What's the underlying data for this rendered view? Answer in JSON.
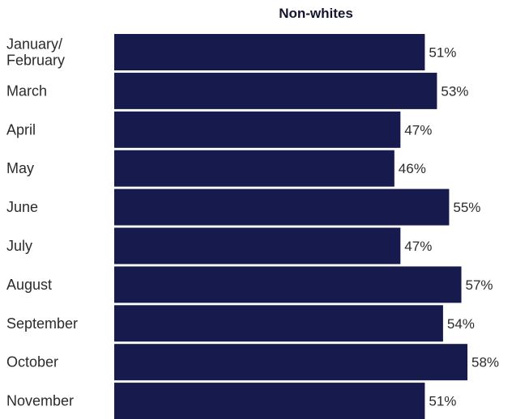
{
  "chart_data": {
    "type": "bar",
    "orientation": "horizontal",
    "title": "Non-whites",
    "categories": [
      [
        "January/",
        "February"
      ],
      [
        "March"
      ],
      [
        "April"
      ],
      [
        "May"
      ],
      [
        "June"
      ],
      [
        "July"
      ],
      [
        "August"
      ],
      [
        "September"
      ],
      [
        "October"
      ],
      [
        "November"
      ]
    ],
    "values": [
      51,
      53,
      47,
      46,
      55,
      47,
      57,
      54,
      58,
      51
    ],
    "value_labels": [
      "51%",
      "53%",
      "47%",
      "46%",
      "55%",
      "47%",
      "57%",
      "54%",
      "58%",
      "51%"
    ],
    "unit": "%",
    "xlim": [
      0,
      58
    ],
    "grid": false,
    "legend": "none",
    "bar_color": "#161a4d"
  }
}
